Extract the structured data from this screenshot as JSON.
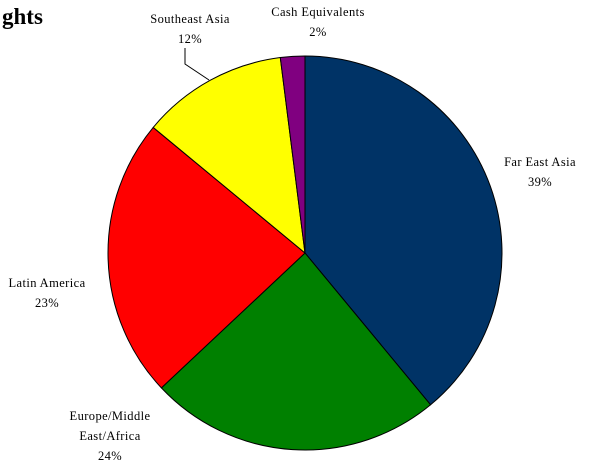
{
  "chart_data": {
    "type": "pie",
    "title": "ghts",
    "slices": [
      {
        "label": [
          "Far East Asia"
        ],
        "value_label": "39%",
        "value": 39,
        "color": "#003366"
      },
      {
        "label": [
          "Europe/Middle",
          "East/Africa"
        ],
        "value_label": "24%",
        "value": 24,
        "color": "#008000"
      },
      {
        "label": [
          "Latin America"
        ],
        "value_label": "23%",
        "value": 23,
        "color": "#ff0000"
      },
      {
        "label": [
          "Southeast Asia"
        ],
        "value_label": "12%",
        "value": 12,
        "color": "#ffff00"
      },
      {
        "label": [
          "Cash Equivalents"
        ],
        "value_label": "2%",
        "value": 2,
        "color": "#800080"
      }
    ],
    "start": "12 o'clock",
    "direction": "clockwise",
    "legend": "none"
  }
}
